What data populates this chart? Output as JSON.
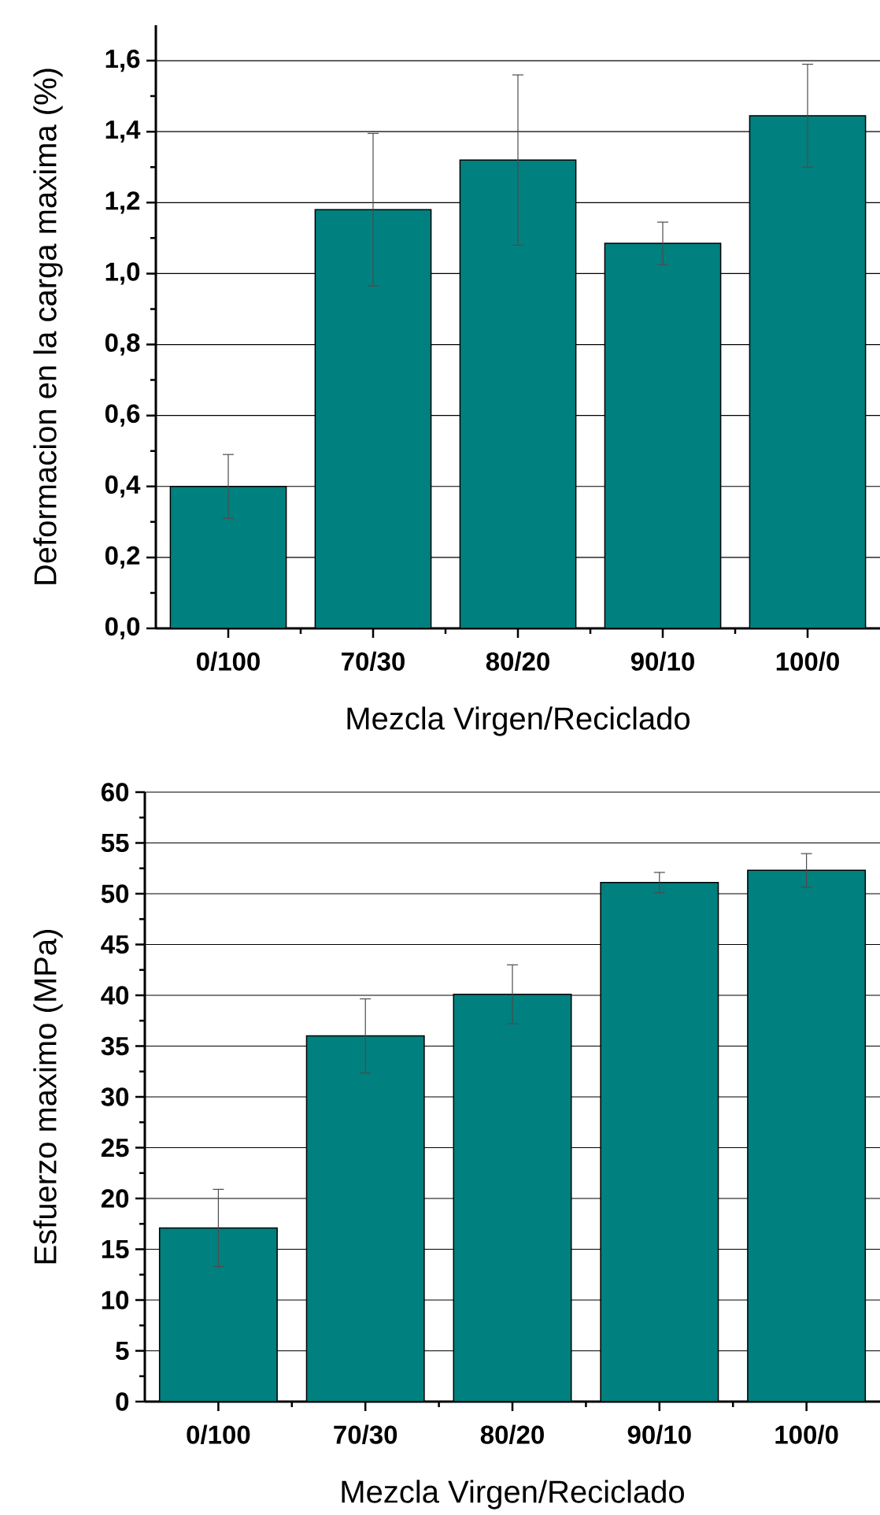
{
  "chart_data": [
    {
      "type": "bar",
      "xlabel": "Mezcla Virgen/Reciclado",
      "ylabel": "Deformacion en la carga maxima (%)",
      "categories": [
        "0/100",
        "70/30",
        "80/20",
        "90/10",
        "100/0"
      ],
      "values": [
        0.4,
        1.18,
        1.32,
        1.085,
        1.445
      ],
      "errors": [
        0.09,
        0.215,
        0.24,
        0.06,
        0.145
      ],
      "color": "#00807f",
      "ylim": [
        0,
        1.7
      ],
      "yticks": [
        {
          "value": 0,
          "label": "0,0"
        },
        {
          "value": 0.2,
          "label": "0,2"
        },
        {
          "value": 0.4,
          "label": "0,4"
        },
        {
          "value": 0.6,
          "label": "0,6"
        },
        {
          "value": 0.8,
          "label": "0,8"
        },
        {
          "value": 1.0,
          "label": "1,0"
        },
        {
          "value": 1.2,
          "label": "1,2"
        },
        {
          "value": 1.4,
          "label": "1,4"
        },
        {
          "value": 1.6,
          "label": "1,6"
        }
      ],
      "grid": "y"
    },
    {
      "type": "bar",
      "xlabel": "Mezcla Virgen/Reciclado",
      "ylabel": "Esfuerzo maximo (MPa)",
      "categories": [
        "0/100",
        "70/30",
        "80/20",
        "90/10",
        "100/0"
      ],
      "values": [
        17.1,
        36.0,
        40.1,
        51.1,
        52.3
      ],
      "errors": [
        3.8,
        3.65,
        2.9,
        1.0,
        1.65
      ],
      "color": "#00807f",
      "ylim": [
        0,
        60
      ],
      "yticks": [
        0,
        5,
        10,
        15,
        20,
        25,
        30,
        35,
        40,
        45,
        50,
        55,
        60
      ],
      "grid": "y"
    }
  ]
}
